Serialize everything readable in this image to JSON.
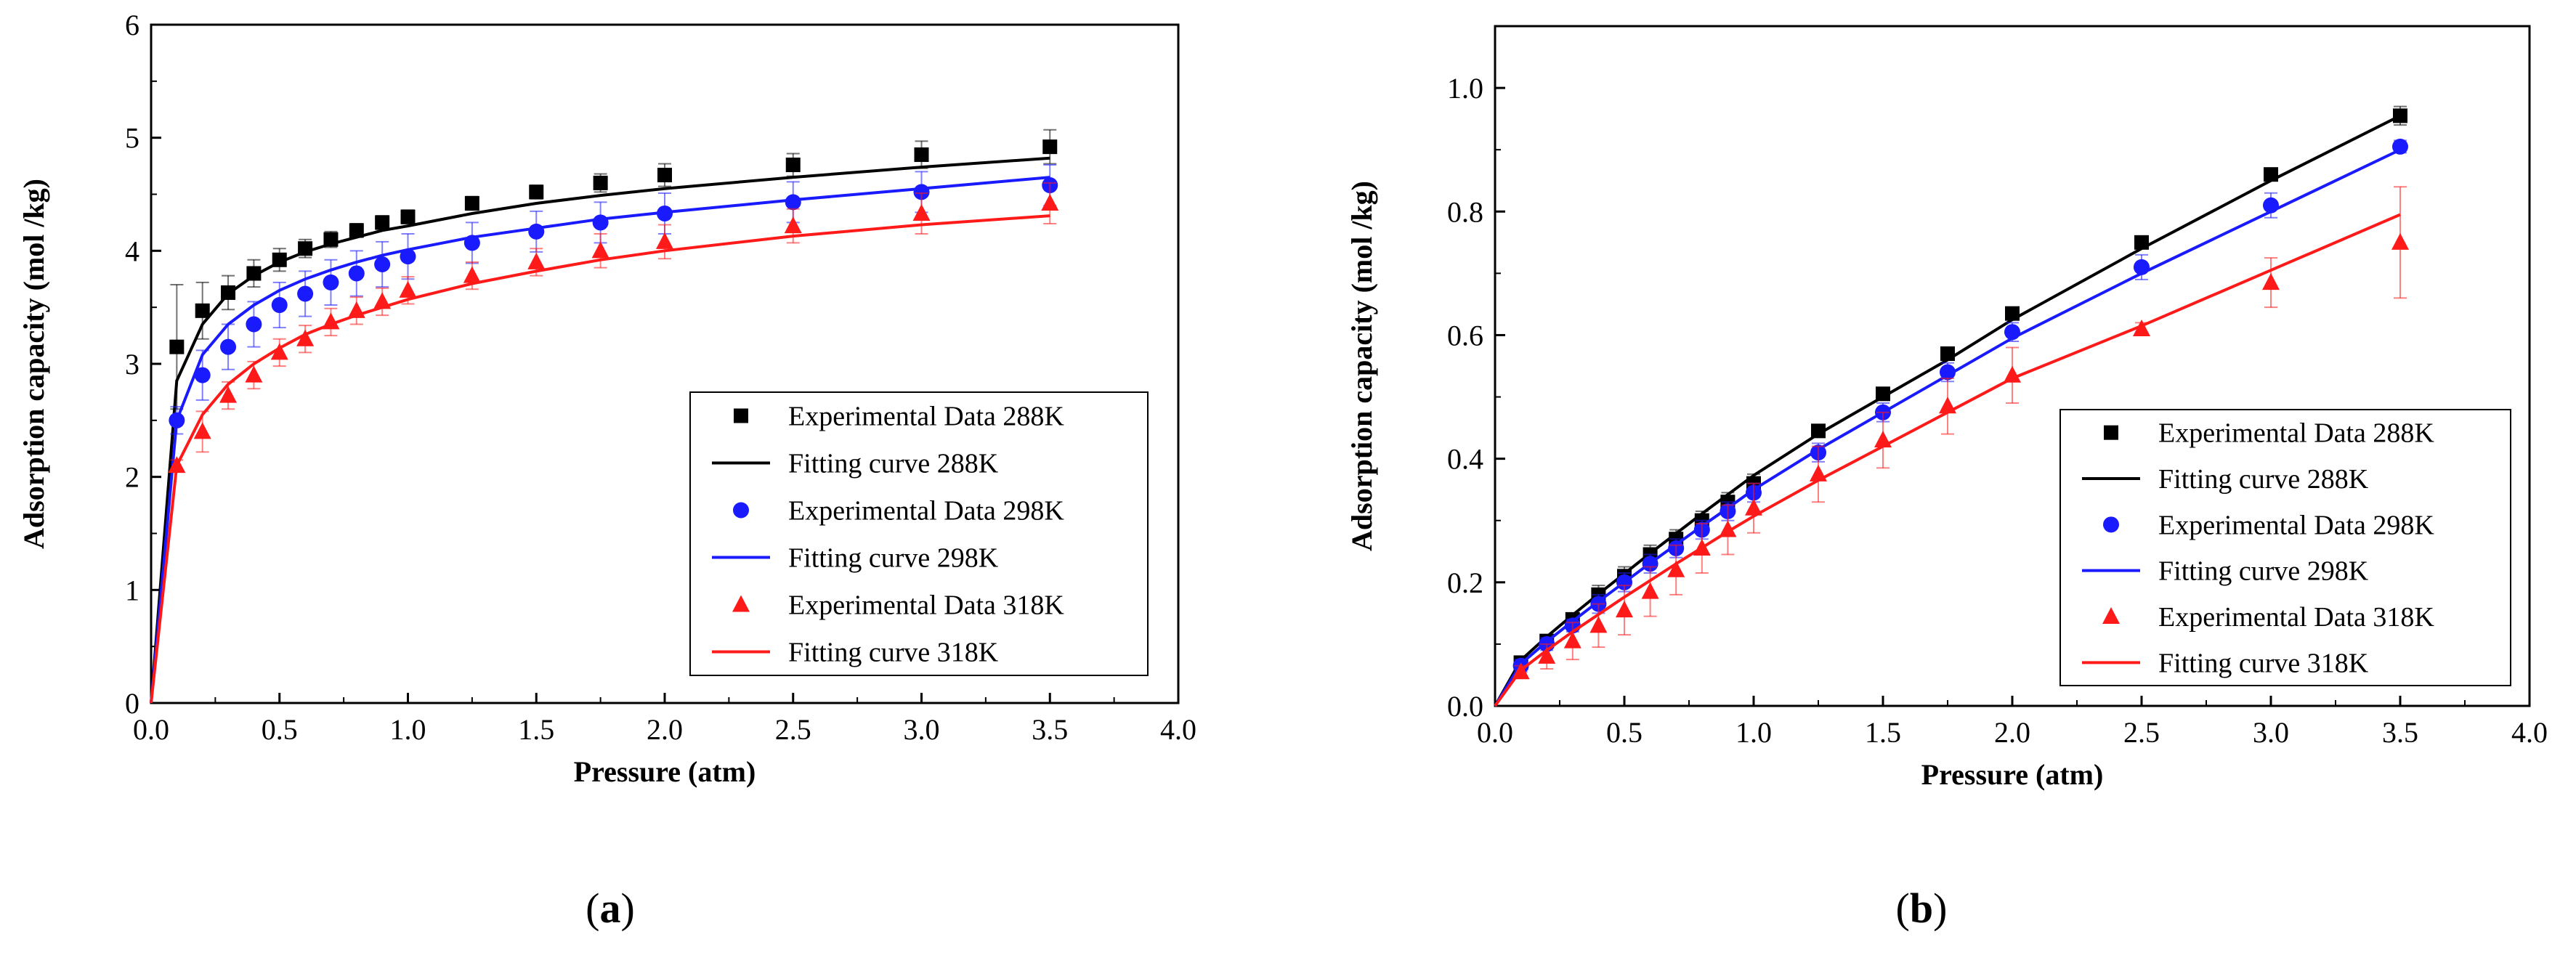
{
  "chart_data": [
    {
      "type": "scatter",
      "panel_label": "a",
      "title": "",
      "xlabel": "Pressure (atm)",
      "ylabel": "Adsorption capacity (mol /kg)",
      "xlim": [
        0,
        4
      ],
      "ylim": [
        0,
        6
      ],
      "xticks": [
        0,
        0.5,
        1,
        1.5,
        2,
        2.5,
        3,
        3.5,
        4
      ],
      "xtick_labels": [
        "0.0",
        "0.5",
        "1.0",
        "1.5",
        "2.0",
        "2.5",
        "3.0",
        "3.5",
        "4.0"
      ],
      "yticks": [
        0,
        1,
        2,
        3,
        4,
        5,
        6
      ],
      "ytick_labels": [
        "0",
        "1",
        "2",
        "3",
        "4",
        "5",
        "6"
      ],
      "grid": false,
      "legend_position": "bottom-right",
      "x": [
        0.1,
        0.2,
        0.3,
        0.4,
        0.5,
        0.6,
        0.7,
        0.8,
        0.9,
        1.0,
        1.25,
        1.5,
        1.75,
        2.0,
        2.5,
        3.0,
        3.5
      ],
      "series": [
        {
          "name": "Experimental Data 288K",
          "kind": "points",
          "marker": "square",
          "color": "#000000",
          "values": [
            3.15,
            3.47,
            3.63,
            3.8,
            3.92,
            4.02,
            4.1,
            4.18,
            4.25,
            4.3,
            4.42,
            4.52,
            4.6,
            4.67,
            4.76,
            4.85,
            4.92
          ],
          "errors": [
            0.55,
            0.25,
            0.15,
            0.12,
            0.1,
            0.08,
            0.07,
            0.06,
            0.06,
            0.06,
            0.06,
            0.06,
            0.08,
            0.1,
            0.1,
            0.12,
            0.15
          ]
        },
        {
          "name": "Fitting curve 288K",
          "kind": "line",
          "color": "#000000",
          "values": [
            2.85,
            3.35,
            3.62,
            3.78,
            3.9,
            3.99,
            4.06,
            4.12,
            4.18,
            4.22,
            4.33,
            4.42,
            4.49,
            4.55,
            4.65,
            4.74,
            4.82
          ]
        },
        {
          "name": "Experimental Data 298K",
          "kind": "points",
          "marker": "circle",
          "color": "#1a1aff",
          "values": [
            2.5,
            2.9,
            3.15,
            3.35,
            3.52,
            3.62,
            3.72,
            3.8,
            3.88,
            3.95,
            4.07,
            4.17,
            4.25,
            4.33,
            4.43,
            4.52,
            4.58
          ],
          "errors": [
            0.12,
            0.22,
            0.2,
            0.2,
            0.2,
            0.2,
            0.2,
            0.2,
            0.2,
            0.2,
            0.18,
            0.18,
            0.18,
            0.18,
            0.18,
            0.18,
            0.18
          ]
        },
        {
          "name": "Fitting curve 298K",
          "kind": "line",
          "color": "#1a1aff",
          "values": [
            2.5,
            3.08,
            3.35,
            3.52,
            3.65,
            3.75,
            3.83,
            3.9,
            3.96,
            4.01,
            4.12,
            4.2,
            4.28,
            4.34,
            4.45,
            4.55,
            4.65
          ]
        },
        {
          "name": "Experimental Data 318K",
          "kind": "points",
          "marker": "triangle",
          "color": "#ff1a1a",
          "values": [
            2.1,
            2.4,
            2.72,
            2.9,
            3.1,
            3.22,
            3.37,
            3.47,
            3.55,
            3.65,
            3.78,
            3.9,
            4.0,
            4.08,
            4.22,
            4.33,
            4.42
          ],
          "errors": [
            0.05,
            0.18,
            0.12,
            0.12,
            0.12,
            0.12,
            0.12,
            0.12,
            0.12,
            0.12,
            0.12,
            0.12,
            0.15,
            0.15,
            0.15,
            0.18,
            0.18
          ]
        },
        {
          "name": "Fitting curve 318K",
          "kind": "line",
          "color": "#ff1a1a",
          "values": [
            2.1,
            2.55,
            2.82,
            3.0,
            3.14,
            3.26,
            3.35,
            3.43,
            3.5,
            3.57,
            3.71,
            3.82,
            3.92,
            4.0,
            4.13,
            4.23,
            4.31
          ]
        }
      ]
    },
    {
      "type": "scatter",
      "panel_label": "b",
      "title": "",
      "xlabel": "Pressure (atm)",
      "ylabel": "Adsorption capacity (mol /kg)",
      "xlim": [
        0,
        4
      ],
      "ylim": [
        0,
        1.1
      ],
      "xticks": [
        0,
        0.5,
        1,
        1.5,
        2,
        2.5,
        3,
        3.5,
        4
      ],
      "xtick_labels": [
        "0.0",
        "0.5",
        "1.0",
        "1.5",
        "2.0",
        "2.5",
        "3.0",
        "3.5",
        "4.0"
      ],
      "yticks": [
        0,
        0.2,
        0.4,
        0.6,
        0.8,
        1.0
      ],
      "ytick_labels": [
        "0.0",
        "0.2",
        "0.4",
        "0.6",
        "0.8",
        "1.0"
      ],
      "grid": false,
      "legend_position": "bottom-right",
      "x": [
        0.1,
        0.2,
        0.3,
        0.4,
        0.5,
        0.6,
        0.7,
        0.8,
        0.9,
        1.0,
        1.25,
        1.5,
        1.75,
        2.0,
        2.5,
        3.0,
        3.5
      ],
      "series": [
        {
          "name": "Experimental Data 288K",
          "kind": "points",
          "marker": "square",
          "color": "#000000",
          "values": [
            0.07,
            0.105,
            0.14,
            0.18,
            0.21,
            0.245,
            0.27,
            0.3,
            0.33,
            0.36,
            0.445,
            0.505,
            0.57,
            0.635,
            0.75,
            0.86,
            0.955
          ],
          "errors": [
            0.01,
            0.01,
            0.01,
            0.015,
            0.015,
            0.015,
            0.015,
            0.015,
            0.015,
            0.015,
            0.01,
            0.01,
            0.01,
            0.01,
            0.01,
            0.01,
            0.015
          ]
        },
        {
          "name": "Fitting curve 288K",
          "kind": "line",
          "color": "#000000",
          "values": [
            0.074,
            0.112,
            0.147,
            0.181,
            0.214,
            0.247,
            0.279,
            0.311,
            0.342,
            0.373,
            0.44,
            0.5,
            0.56,
            0.625,
            0.74,
            0.85,
            0.955
          ]
        },
        {
          "name": "Experimental Data 298K",
          "kind": "points",
          "marker": "circle",
          "color": "#1a1aff",
          "values": [
            0.065,
            0.1,
            0.13,
            0.165,
            0.2,
            0.23,
            0.255,
            0.285,
            0.315,
            0.345,
            0.41,
            0.475,
            0.54,
            0.605,
            0.71,
            0.81,
            0.905
          ],
          "errors": [
            0.01,
            0.01,
            0.01,
            0.015,
            0.015,
            0.015,
            0.015,
            0.015,
            0.015,
            0.015,
            0.015,
            0.015,
            0.015,
            0.015,
            0.02,
            0.02,
            0.01
          ]
        },
        {
          "name": "Fitting curve 298K",
          "kind": "line",
          "color": "#1a1aff",
          "values": [
            0.068,
            0.104,
            0.137,
            0.169,
            0.2,
            0.231,
            0.261,
            0.291,
            0.32,
            0.35,
            0.415,
            0.475,
            0.535,
            0.595,
            0.7,
            0.8,
            0.9
          ]
        },
        {
          "name": "Experimental Data 318K",
          "kind": "points",
          "marker": "triangle",
          "color": "#ff1a1a",
          "values": [
            0.055,
            0.08,
            0.105,
            0.13,
            0.155,
            0.185,
            0.22,
            0.255,
            0.285,
            0.32,
            0.375,
            0.43,
            0.485,
            0.535,
            0.61,
            0.685,
            0.75
          ],
          "errors": [
            0.01,
            0.02,
            0.03,
            0.035,
            0.04,
            0.04,
            0.04,
            0.04,
            0.04,
            0.04,
            0.045,
            0.045,
            0.045,
            0.045,
            0.01,
            0.04,
            0.09
          ]
        },
        {
          "name": "Fitting curve 318K",
          "kind": "line",
          "color": "#ff1a1a",
          "values": [
            0.058,
            0.09,
            0.12,
            0.148,
            0.176,
            0.203,
            0.23,
            0.256,
            0.282,
            0.307,
            0.365,
            0.42,
            0.475,
            0.53,
            0.615,
            0.705,
            0.795
          ]
        }
      ]
    }
  ]
}
